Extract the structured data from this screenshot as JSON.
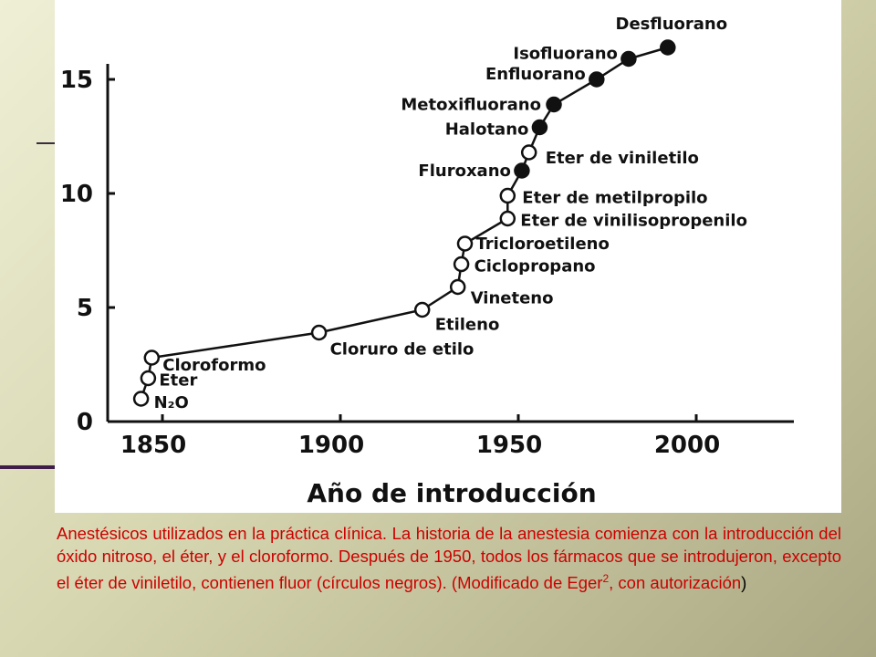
{
  "chart_data": {
    "type": "scatter",
    "xlabel": "Año de introducción",
    "ylabel": "",
    "xlim": [
      1830,
      2005
    ],
    "ylim": [
      0,
      15.5
    ],
    "x_ticks": [
      "1850",
      "1900",
      "1950",
      "2000"
    ],
    "y_ticks": [
      "0",
      "5",
      "10",
      "15"
    ],
    "connected": true,
    "points": [
      {
        "name": "N₂O",
        "x": 1844,
        "y": 1,
        "filled": false
      },
      {
        "name": "Eter",
        "x": 1846,
        "y": 1.9,
        "filled": false
      },
      {
        "name": "Cloroformo",
        "x": 1847,
        "y": 2.8,
        "filled": false
      },
      {
        "name": "Cloruro de etilo",
        "x": 1894,
        "y": 3.9,
        "filled": false
      },
      {
        "name": "Etileno",
        "x": 1923,
        "y": 4.9,
        "filled": false
      },
      {
        "name": "Vineteno",
        "x": 1933,
        "y": 5.9,
        "filled": false
      },
      {
        "name": "Ciclopropano",
        "x": 1934,
        "y": 6.9,
        "filled": false
      },
      {
        "name": "Tricloroetileno",
        "x": 1935,
        "y": 7.8,
        "filled": false
      },
      {
        "name": "Eter de vinilisopropenilo",
        "x": 1947,
        "y": 8.9,
        "filled": false
      },
      {
        "name": "Eter de metilpropilo",
        "x": 1947,
        "y": 9.9,
        "filled": false
      },
      {
        "name": "Fluroxano",
        "x": 1951,
        "y": 11.0,
        "filled": true
      },
      {
        "name": "Eter de viniletilo",
        "x": 1953,
        "y": 11.8,
        "filled": false
      },
      {
        "name": "Halotano",
        "x": 1956,
        "y": 12.9,
        "filled": true
      },
      {
        "name": "Metoxifluorano",
        "x": 1960,
        "y": 13.9,
        "filled": true
      },
      {
        "name": "Enfluorano",
        "x": 1972,
        "y": 15.0,
        "filled": true
      },
      {
        "name": "Isofluorano",
        "x": 1981,
        "y": 15.9,
        "filled": true
      },
      {
        "name": "Desfluorano",
        "x": 1992,
        "y": 16.4,
        "filled": true
      }
    ]
  },
  "caption": {
    "text": "Anestésicos utilizados en la práctica clínica. La historia de la anestesia comienza con la introducción del óxido nitroso, el éter, y el cloroformo. Después de 1950, todos los fármacos que se introdujeron, excepto el éter de viniletilo, contienen fluor (círculos negros). (Modificado de Eger",
    "sup": "2",
    "tail": ", con autorización",
    "close": ")"
  },
  "colors": {
    "caption": "#cc0000",
    "background": "#d6d6b0",
    "panel": "#ffffff"
  }
}
